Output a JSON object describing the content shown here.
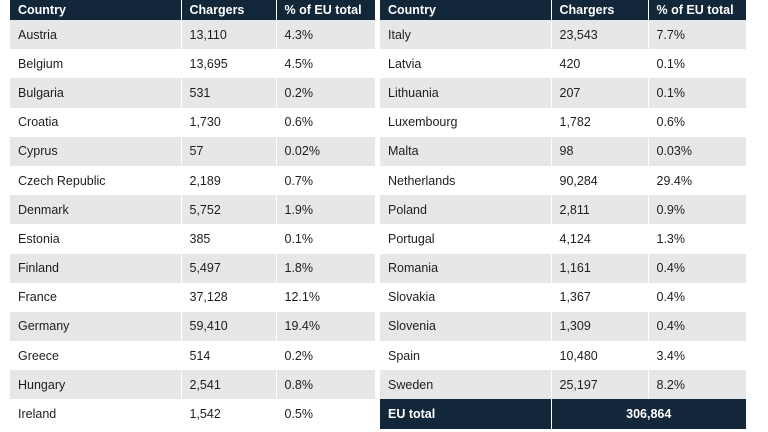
{
  "headers": {
    "country": "Country",
    "chargers": "Chargers",
    "share": "% of EU total"
  },
  "left_rows": [
    {
      "country": "Austria",
      "chargers": "13,110",
      "share": "4.3%"
    },
    {
      "country": "Belgium",
      "chargers": "13,695",
      "share": "4.5%"
    },
    {
      "country": "Bulgaria",
      "chargers": "531",
      "share": "0.2%"
    },
    {
      "country": "Croatia",
      "chargers": "1,730",
      "share": "0.6%"
    },
    {
      "country": "Cyprus",
      "chargers": "57",
      "share": "0.02%"
    },
    {
      "country": "Czech Republic",
      "chargers": "2,189",
      "share": "0.7%"
    },
    {
      "country": "Denmark",
      "chargers": "5,752",
      "share": "1.9%"
    },
    {
      "country": "Estonia",
      "chargers": "385",
      "share": "0.1%"
    },
    {
      "country": "Finland",
      "chargers": "5,497",
      "share": "1.8%"
    },
    {
      "country": "France",
      "chargers": "37,128",
      "share": "12.1%"
    },
    {
      "country": "Germany",
      "chargers": "59,410",
      "share": "19.4%"
    },
    {
      "country": "Greece",
      "chargers": "514",
      "share": "0.2%"
    },
    {
      "country": "Hungary",
      "chargers": "2,541",
      "share": "0.8%"
    },
    {
      "country": "Ireland",
      "chargers": "1,542",
      "share": "0.5%"
    }
  ],
  "right_rows": [
    {
      "country": "Italy",
      "chargers": "23,543",
      "share": "7.7%"
    },
    {
      "country": "Latvia",
      "chargers": "420",
      "share": "0.1%"
    },
    {
      "country": "Lithuania",
      "chargers": "207",
      "share": "0.1%"
    },
    {
      "country": "Luxembourg",
      "chargers": "1,782",
      "share": "0.6%"
    },
    {
      "country": "Malta",
      "chargers": "98",
      "share": "0.03%"
    },
    {
      "country": "Netherlands",
      "chargers": "90,284",
      "share": "29.4%"
    },
    {
      "country": "Poland",
      "chargers": "2,811",
      "share": "0.9%"
    },
    {
      "country": "Portugal",
      "chargers": "4,124",
      "share": "1.3%"
    },
    {
      "country": "Romania",
      "chargers": "1,161",
      "share": "0.4%"
    },
    {
      "country": "Slovakia",
      "chargers": "1,367",
      "share": "0.4%"
    },
    {
      "country": "Slovenia",
      "chargers": "1,309",
      "share": "0.4%"
    },
    {
      "country": "Spain",
      "chargers": "10,480",
      "share": "3.4%"
    },
    {
      "country": "Sweden",
      "chargers": "25,197",
      "share": "8.2%"
    }
  ],
  "total": {
    "label": "EU total",
    "value": "306,864"
  },
  "colors": {
    "header_bg": "#13273b",
    "stripe": "#e6e7e8"
  }
}
